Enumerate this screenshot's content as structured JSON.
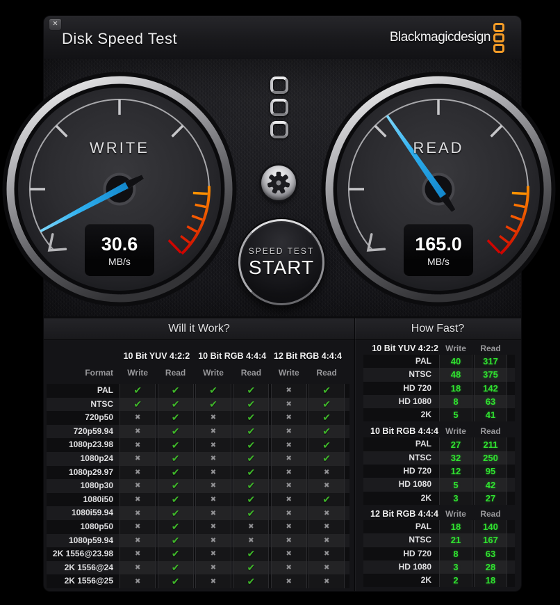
{
  "titlebar": {
    "title": "Disk Speed Test",
    "brand": "Blackmagicdesign"
  },
  "icons": {
    "close": "✕",
    "check": "✔",
    "cross": "✖",
    "gear": "gear-icon",
    "logo": "blackmagic-three-squares"
  },
  "gauges": {
    "write": {
      "label": "WRITE",
      "value": "30.6",
      "unit": "MB/s",
      "needle_angle": -118
    },
    "read": {
      "label": "READ",
      "value": "165.0",
      "unit": "MB/s",
      "needle_angle": -35
    }
  },
  "center": {
    "speed_test": "SPEED TEST",
    "start": "START"
  },
  "panels": {
    "will_it_work": {
      "title": "Will it Work?",
      "format_header": "Format",
      "write_header": "Write",
      "read_header": "Read",
      "groups": [
        "10 Bit YUV 4:2:2",
        "10 Bit RGB 4:4:4",
        "12 Bit RGB 4:4:4"
      ],
      "rows": [
        {
          "format": "PAL",
          "checks": [
            1,
            1,
            1,
            1,
            0,
            1
          ]
        },
        {
          "format": "NTSC",
          "checks": [
            1,
            1,
            1,
            1,
            0,
            1
          ]
        },
        {
          "format": "720p50",
          "checks": [
            0,
            1,
            0,
            1,
            0,
            1
          ]
        },
        {
          "format": "720p59.94",
          "checks": [
            0,
            1,
            0,
            1,
            0,
            1
          ]
        },
        {
          "format": "1080p23.98",
          "checks": [
            0,
            1,
            0,
            1,
            0,
            1
          ]
        },
        {
          "format": "1080p24",
          "checks": [
            0,
            1,
            0,
            1,
            0,
            1
          ]
        },
        {
          "format": "1080p29.97",
          "checks": [
            0,
            1,
            0,
            1,
            0,
            0
          ]
        },
        {
          "format": "1080p30",
          "checks": [
            0,
            1,
            0,
            1,
            0,
            0
          ]
        },
        {
          "format": "1080i50",
          "checks": [
            0,
            1,
            0,
            1,
            0,
            1
          ]
        },
        {
          "format": "1080i59.94",
          "checks": [
            0,
            1,
            0,
            1,
            0,
            0
          ]
        },
        {
          "format": "1080p50",
          "checks": [
            0,
            1,
            0,
            0,
            0,
            0
          ]
        },
        {
          "format": "1080p59.94",
          "checks": [
            0,
            1,
            0,
            0,
            0,
            0
          ]
        },
        {
          "format": "2K 1556@23.98",
          "checks": [
            0,
            1,
            0,
            1,
            0,
            0
          ]
        },
        {
          "format": "2K 1556@24",
          "checks": [
            0,
            1,
            0,
            1,
            0,
            0
          ]
        },
        {
          "format": "2K 1556@25",
          "checks": [
            0,
            1,
            0,
            1,
            0,
            0
          ]
        }
      ]
    },
    "how_fast": {
      "title": "How Fast?",
      "write_header": "Write",
      "read_header": "Read",
      "sections": [
        {
          "label": "10 Bit YUV 4:2:2",
          "rows": [
            {
              "label": "PAL",
              "write": "40",
              "read": "317"
            },
            {
              "label": "NTSC",
              "write": "48",
              "read": "375"
            },
            {
              "label": "HD 720",
              "write": "18",
              "read": "142"
            },
            {
              "label": "HD 1080",
              "write": "8",
              "read": "63"
            },
            {
              "label": "2K",
              "write": "5",
              "read": "41"
            }
          ]
        },
        {
          "label": "10 Bit RGB 4:4:4",
          "rows": [
            {
              "label": "PAL",
              "write": "27",
              "read": "211"
            },
            {
              "label": "NTSC",
              "write": "32",
              "read": "250"
            },
            {
              "label": "HD 720",
              "write": "12",
              "read": "95"
            },
            {
              "label": "HD 1080",
              "write": "5",
              "read": "42"
            },
            {
              "label": "2K",
              "write": "3",
              "read": "27"
            }
          ]
        },
        {
          "label": "12 Bit RGB 4:4:4",
          "rows": [
            {
              "label": "PAL",
              "write": "18",
              "read": "140"
            },
            {
              "label": "NTSC",
              "write": "21",
              "read": "167"
            },
            {
              "label": "HD 720",
              "write": "8",
              "read": "63"
            },
            {
              "label": "HD 1080",
              "write": "3",
              "read": "28"
            },
            {
              "label": "2K",
              "write": "2",
              "read": "18"
            }
          ]
        }
      ]
    }
  },
  "colors": {
    "needle_blue": "#2fb0ef",
    "check_green": "#3fb62a",
    "value_green": "#30e230",
    "logo_orange": "#f49c27",
    "redline": "#cf0500"
  }
}
